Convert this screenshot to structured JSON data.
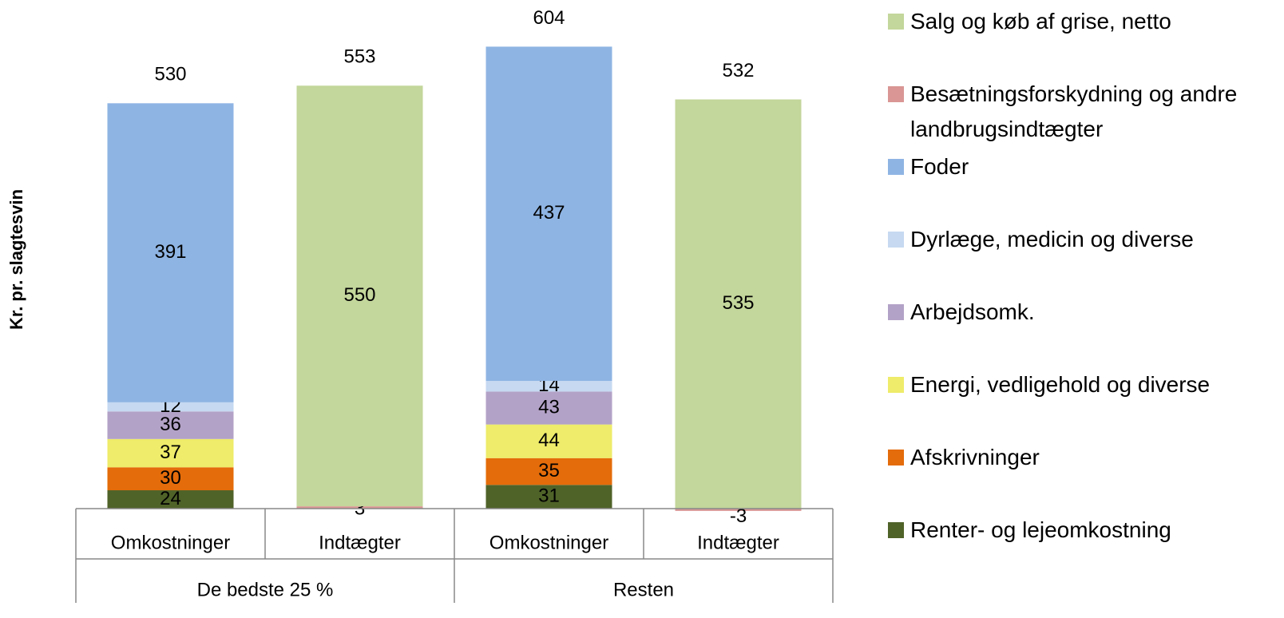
{
  "chart_data": {
    "type": "stacked-bar",
    "y_label": "Kr. pr. slagtesvin",
    "categories": [
      "Omkostninger",
      "Indtægter",
      "Omkostninger",
      "Indtægter"
    ],
    "groups": [
      "De bedste 25 %",
      "Resten"
    ],
    "ylim": [
      0,
      665
    ],
    "series": [
      {
        "name": "Renter- og lejeomkostning",
        "color": "#4f6228",
        "values": [
          24,
          null,
          31,
          null
        ]
      },
      {
        "name": "Afskrivninger",
        "color": "#e46c0a",
        "values": [
          30,
          null,
          35,
          null
        ]
      },
      {
        "name": "Energi, vedligehold og diverse",
        "color": "#eeec6a",
        "values": [
          37,
          null,
          44,
          null
        ]
      },
      {
        "name": "Arbejdsomk.",
        "color": "#b3a2c7",
        "values": [
          36,
          null,
          43,
          null
        ]
      },
      {
        "name": "Dyrlæge, medicin og diverse",
        "color": "#c6d9f1",
        "values": [
          12,
          null,
          14,
          null
        ]
      },
      {
        "name": "Foder",
        "color": "#8eb4e3",
        "values": [
          391,
          null,
          437,
          null
        ]
      },
      {
        "name": "Besætningsforskydning og andre landbrugsindtægter",
        "color": "#d99694",
        "values": [
          null,
          3,
          null,
          -3
        ]
      },
      {
        "name": "Salg og køb af grise, netto",
        "color": "#c3d69b",
        "values": [
          null,
          550,
          null,
          535
        ]
      }
    ],
    "totals": [
      530,
      553,
      604,
      532
    ]
  }
}
